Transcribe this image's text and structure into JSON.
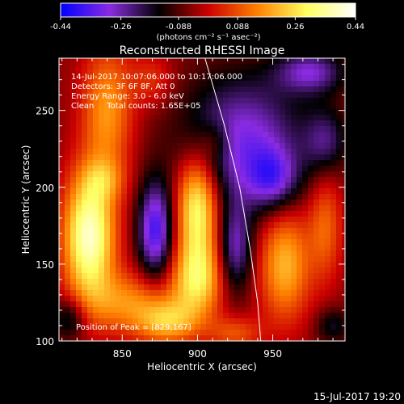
{
  "chart_data": {
    "type": "heatmap",
    "title": "Reconstructed RHESSI Image",
    "xlabel": "Heliocentric X (arcsec)",
    "ylabel": "Heliocentric Y (arcsec)",
    "xlim": [
      808,
      998
    ],
    "ylim": [
      100,
      284
    ],
    "x_ticks": [
      "850",
      "900",
      "950"
    ],
    "x_tick_values": [
      850,
      900,
      950
    ],
    "y_ticks": [
      "100",
      "150",
      "200",
      "250"
    ],
    "y_tick_values": [
      100,
      150,
      200,
      250
    ],
    "colorbar": {
      "min": -0.44,
      "max": 0.44,
      "tick_labels": [
        "-0.44",
        "-0.26",
        "-0.088",
        "0.088",
        "0.26",
        "0.44"
      ],
      "units": "(photons cm⁻² s⁻¹ asec⁻²)",
      "colors": [
        "#0000ff",
        "#8a2be2",
        "#000000",
        "#cc0000",
        "#ff8000",
        "#ffff60",
        "#ffffff"
      ]
    },
    "annotations": [
      "14-Jul-2017 10:07:06.000 to 10:17:06.000",
      "Detectors: 3F 6F 8F, Att 0",
      "Energy Range: 3.0 - 6.0 keV",
      "Clean     Total counts: 1.65E+05"
    ],
    "peak_label": "Position of Peak = [829,167]",
    "peak": [
      829,
      167
    ],
    "limb_curve": [
      [
        905,
        284
      ],
      [
        918,
        240
      ],
      [
        928,
        200
      ],
      [
        935,
        160
      ],
      [
        940,
        125
      ],
      [
        942,
        100
      ]
    ],
    "sources": [
      {
        "x": 828,
        "y": 168,
        "sx": 12,
        "sy": 28,
        "amp": 0.44
      },
      {
        "x": 900,
        "y": 188,
        "sx": 10,
        "sy": 24,
        "amp": 0.38
      },
      {
        "x": 900,
        "y": 140,
        "sx": 12,
        "sy": 18,
        "amp": 0.3
      },
      {
        "x": 840,
        "y": 250,
        "sx": 12,
        "sy": 30,
        "amp": 0.22
      },
      {
        "x": 958,
        "y": 150,
        "sx": 12,
        "sy": 26,
        "amp": 0.26
      },
      {
        "x": 985,
        "y": 175,
        "sx": 8,
        "sy": 25,
        "amp": 0.16
      },
      {
        "x": 855,
        "y": 125,
        "sx": 22,
        "sy": 14,
        "amp": 0.2
      },
      {
        "x": 880,
        "y": 112,
        "sx": 14,
        "sy": 10,
        "amp": 0.22
      },
      {
        "x": 925,
        "y": 105,
        "sx": 12,
        "sy": 8,
        "amp": 0.14
      },
      {
        "x": 838,
        "y": 205,
        "sx": 10,
        "sy": 10,
        "amp": 0.12
      },
      {
        "x": 870,
        "y": 270,
        "sx": 10,
        "sy": 12,
        "amp": 0.1
      },
      {
        "x": 912,
        "y": 230,
        "sx": 7,
        "sy": 9,
        "amp": 0.1
      },
      {
        "x": 872,
        "y": 172,
        "sx": 8,
        "sy": 22,
        "amp": -0.32
      },
      {
        "x": 930,
        "y": 230,
        "sx": 28,
        "sy": 30,
        "amp": -0.26
      },
      {
        "x": 950,
        "y": 205,
        "sx": 12,
        "sy": 14,
        "amp": -0.2
      },
      {
        "x": 925,
        "y": 160,
        "sx": 8,
        "sy": 20,
        "amp": -0.22
      },
      {
        "x": 975,
        "y": 275,
        "sx": 16,
        "sy": 10,
        "amp": -0.22
      },
      {
        "x": 985,
        "y": 230,
        "sx": 10,
        "sy": 15,
        "amp": -0.16
      },
      {
        "x": 815,
        "y": 115,
        "sx": 8,
        "sy": 10,
        "amp": -0.16
      },
      {
        "x": 990,
        "y": 110,
        "sx": 8,
        "sy": 8,
        "amp": -0.12
      }
    ]
  },
  "timestamp": "15-Jul-2017 19:20"
}
